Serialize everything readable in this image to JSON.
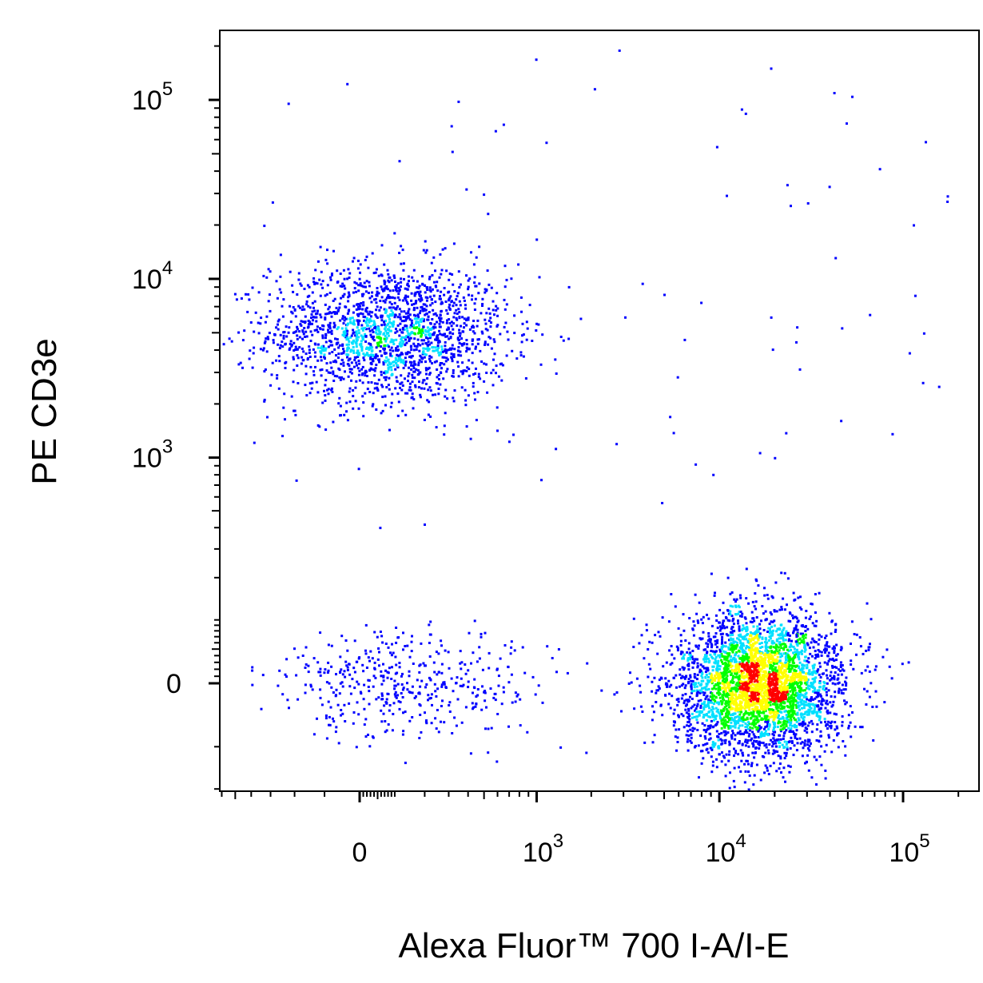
{
  "chart_data": {
    "type": "scatter",
    "subtype": "flow-cytometry pseudocolor density plot",
    "xlabel": "Alexa Fluor™ 700 I-A/I-E",
    "ylabel": "PE CD3e",
    "x_scale": "biexponential",
    "y_scale": "biexponential",
    "xlim": [
      -1500,
      250000
    ],
    "ylim": [
      -800,
      220000
    ],
    "x_ticks": [
      {
        "value": 0,
        "label": "0"
      },
      {
        "value": 1000,
        "base": "10",
        "exp": "3"
      },
      {
        "value": 10000,
        "base": "10",
        "exp": "4"
      },
      {
        "value": 100000,
        "base": "10",
        "exp": "5"
      }
    ],
    "y_ticks": [
      {
        "value": 0,
        "label": "0"
      },
      {
        "value": 1000,
        "base": "10",
        "exp": "3"
      },
      {
        "value": 10000,
        "base": "10",
        "exp": "4"
      },
      {
        "value": 100000,
        "base": "10",
        "exp": "5"
      }
    ],
    "density_colors": [
      "#0000ff",
      "#00e0ff",
      "#00ff00",
      "#ffff00",
      "#ff0000"
    ],
    "grid": false,
    "populations": [
      {
        "description": "CD3e+ I-A/I-E-",
        "x_center": 80,
        "y_center": 5000,
        "approx_events": 1900
      },
      {
        "description": "CD3e- I-A/I-E+",
        "x_center": 16000,
        "y_center": 0,
        "approx_events": 3600
      },
      {
        "description": "CD3e- I-A/I-E-",
        "x_center": 150,
        "y_center": 0,
        "approx_events": 450
      },
      {
        "description": "scattered events",
        "approx_events": 90
      }
    ]
  }
}
